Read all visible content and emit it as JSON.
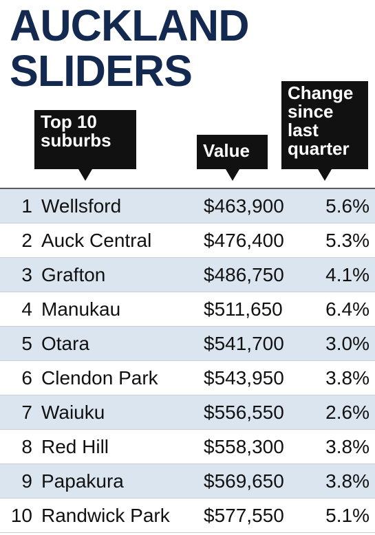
{
  "title": {
    "line1": "AUCKLAND",
    "line2": "SLIDERS"
  },
  "headers": {
    "suburbs": [
      "Top 10",
      "suburbs"
    ],
    "value": "Value",
    "change": [
      "Change",
      "since",
      "last",
      "quarter"
    ]
  },
  "colors": {
    "title": "#13294f",
    "header_bg": "#111111",
    "row_shade": "#dbe5ef"
  },
  "chart_data": {
    "type": "table",
    "title": "AUCKLAND SLIDERS",
    "columns": [
      "Top 10 suburbs",
      "Value",
      "Change since last quarter"
    ],
    "rows": [
      {
        "rank": "1",
        "suburb": "Wellsford",
        "value": "$463,900",
        "change": "5.6%"
      },
      {
        "rank": "2",
        "suburb": "Auck Central",
        "value": "$476,400",
        "change": "5.3%"
      },
      {
        "rank": "3",
        "suburb": "Grafton",
        "value": "$486,750",
        "change": "4.1%"
      },
      {
        "rank": "4",
        "suburb": "Manukau",
        "value": "$511,650",
        "change": "6.4%"
      },
      {
        "rank": "5",
        "suburb": "Otara",
        "value": "$541,700",
        "change": "3.0%"
      },
      {
        "rank": "6",
        "suburb": "Clendon Park",
        "value": "$543,950",
        "change": "3.8%"
      },
      {
        "rank": "7",
        "suburb": "Waiuku",
        "value": "$556,550",
        "change": "2.6%"
      },
      {
        "rank": "8",
        "suburb": "Red Hill",
        "value": "$558,300",
        "change": "3.8%"
      },
      {
        "rank": "9",
        "suburb": "Papakura",
        "value": "$569,650",
        "change": "3.8%"
      },
      {
        "rank": "10",
        "suburb": "Randwick Park",
        "value": "$577,550",
        "change": "5.1%"
      }
    ]
  }
}
